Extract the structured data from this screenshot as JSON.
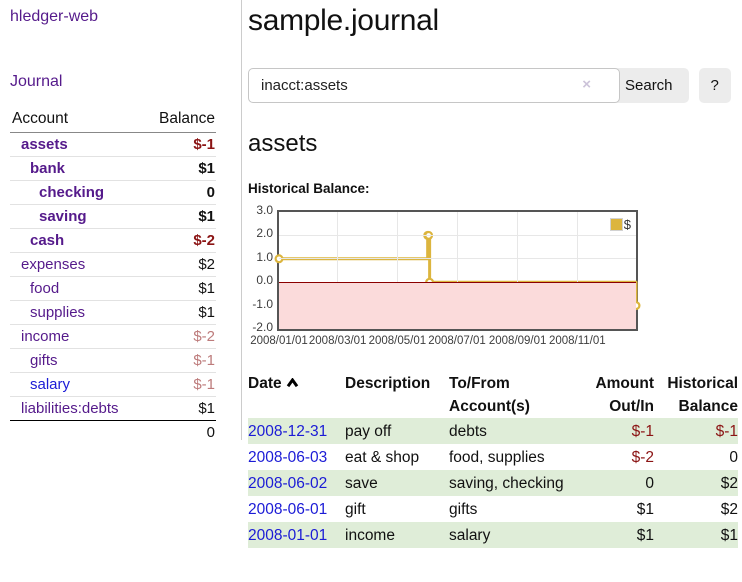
{
  "colors": {
    "purple": "#551a8b",
    "link_blue": "#1b1bd6",
    "neg_strong": "#8b1414",
    "neg_muted": "#bd7b7b",
    "row_green": "#dfedd8",
    "series_gold": "#dcb53e",
    "zero_line": "#8b0000",
    "negative_region": "#fbdbdb"
  },
  "sidebar": {
    "app_title": "hledger-web",
    "journal_link": "Journal",
    "account_header": "Account",
    "balance_header": "Balance",
    "accounts": [
      {
        "name": "assets",
        "depth": 1,
        "bold": true,
        "balance": "$-1",
        "bal_class": "neg-strong"
      },
      {
        "name": "bank",
        "depth": 2,
        "bold": true,
        "balance": "$1",
        "bal_class": "pos"
      },
      {
        "name": "checking",
        "depth": 3,
        "bold": true,
        "balance": "0",
        "bal_class": "pos"
      },
      {
        "name": "saving",
        "depth": 3,
        "bold": true,
        "balance": "$1",
        "bal_class": "pos"
      },
      {
        "name": "cash",
        "depth": 2,
        "bold": true,
        "balance": "$-2",
        "bal_class": "neg-strong"
      },
      {
        "name": "expenses",
        "depth": 1,
        "bold": false,
        "balance": "$2",
        "bal_class": "pos"
      },
      {
        "name": "food",
        "depth": 2,
        "bold": false,
        "balance": "$1",
        "bal_class": "pos"
      },
      {
        "name": "supplies",
        "depth": 2,
        "bold": false,
        "balance": "$1",
        "bal_class": "pos"
      },
      {
        "name": "income",
        "depth": 1,
        "bold": false,
        "balance": "$-2",
        "bal_class": "neg-muted"
      },
      {
        "name": "gifts",
        "depth": 2,
        "bold": false,
        "balance": "$-1",
        "bal_class": "neg-muted"
      },
      {
        "name": "salary",
        "depth": 2,
        "bold": false,
        "balance": "$-1",
        "bal_class": "neg-muted",
        "link_blue": true
      },
      {
        "name": "liabilities:debts",
        "depth": 1,
        "bold": false,
        "balance": "$1",
        "bal_class": "pos"
      }
    ],
    "total": "0"
  },
  "main": {
    "title": "sample.journal",
    "search": {
      "value": "inacct:assets",
      "clear_icon": "×",
      "button": "Search",
      "help_button": "?"
    },
    "account_heading": "assets",
    "chart_label": "Historical Balance:"
  },
  "chart_data": {
    "type": "line",
    "title": "Historical Balance",
    "step": true,
    "series": [
      {
        "name": "$",
        "color": "#dcb53e",
        "points": [
          [
            "2008-01-01",
            1
          ],
          [
            "2008-06-01",
            2
          ],
          [
            "2008-06-02",
            2
          ],
          [
            "2008-06-03",
            0
          ],
          [
            "2008-12-31",
            -1
          ]
        ]
      }
    ],
    "ylim": [
      -2.0,
      3.0
    ],
    "yticks": [
      "3.0",
      "2.0",
      "1.0",
      "0.0",
      "-1.0",
      "-2.0"
    ],
    "ytick_values": [
      3,
      2,
      1,
      0,
      -1,
      -2
    ],
    "xticks": [
      "2008/01/01",
      "2008/03/01",
      "2008/05/01",
      "2008/07/01",
      "2008/09/01",
      "2008/11/01"
    ],
    "xrange": [
      "2008-01-01",
      "2008-12-31"
    ],
    "grid": true,
    "legend_position": "top-right",
    "negative_region_below_zero": true
  },
  "register": {
    "headers": {
      "date": "Date",
      "description": "Description",
      "tofrom_line1": "To/From",
      "tofrom_line2": "Account(s)",
      "amount_line1": "Amount",
      "amount_line2": "Out/In",
      "balance_line1": "Historical",
      "balance_line2": "Balance"
    },
    "rows": [
      {
        "date": "2008-12-31",
        "description": "pay off",
        "accounts": "debts",
        "amount": "$-1",
        "balance": "$-1"
      },
      {
        "date": "2008-06-03",
        "description": "eat & shop",
        "accounts": "food, supplies",
        "amount": "$-2",
        "balance": "0"
      },
      {
        "date": "2008-06-02",
        "description": "save",
        "accounts": "saving, checking",
        "amount": "0",
        "balance": "$2"
      },
      {
        "date": "2008-06-01",
        "description": "gift",
        "accounts": "gifts",
        "amount": "$1",
        "balance": "$2"
      },
      {
        "date": "2008-01-01",
        "description": "income",
        "accounts": "salary",
        "amount": "$1",
        "balance": "$1"
      }
    ]
  }
}
